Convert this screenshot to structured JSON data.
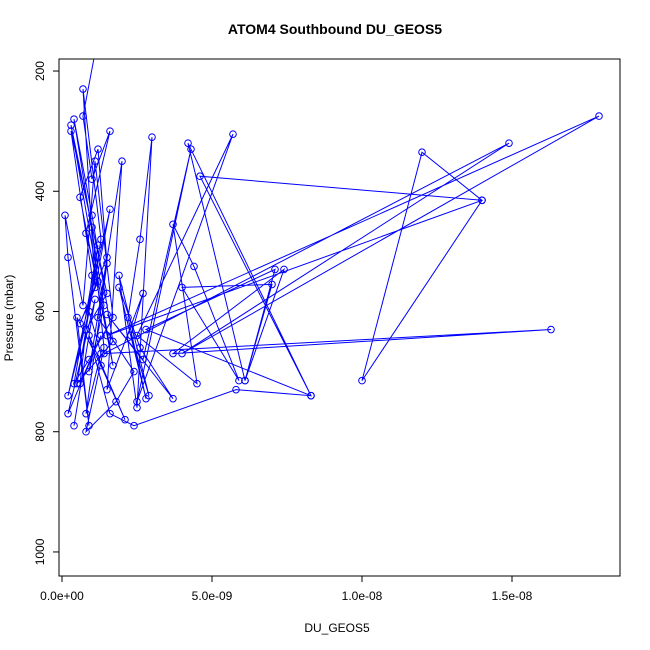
{
  "chart_data": {
    "type": "line",
    "title": "ATOM4 Southbound DU_GEOS5",
    "xlabel": "DU_GEOS5",
    "ylabel": "Pressure (mbar)",
    "xlim": [
      -1e-10,
      1.86e-08
    ],
    "ylim": [
      1040,
      180
    ],
    "y_reversed": true,
    "x_ticks": [
      {
        "value": 0,
        "label": "0.0e+00"
      },
      {
        "value": 5e-09,
        "label": "5.0e-09"
      },
      {
        "value": 1e-08,
        "label": "1.0e-08"
      },
      {
        "value": 1.5e-08,
        "label": "1.5e-08"
      }
    ],
    "y_ticks": [
      {
        "value": 200,
        "label": "200"
      },
      {
        "value": 400,
        "label": "400"
      },
      {
        "value": 600,
        "label": "600"
      },
      {
        "value": 800,
        "label": "800"
      },
      {
        "value": 1000,
        "label": "1000"
      }
    ],
    "grid": false,
    "legend": "none",
    "series": [
      {
        "color": "#0000ff",
        "marker": "open-circle",
        "x": [
          1.1e-09,
          7e-10,
          1e-09,
          1.6e-09,
          8e-10,
          1.2e-09,
          6e-10,
          1.5e-09,
          9e-10,
          1.4e-09,
          4e-10,
          1e-09,
          1.7e-09,
          5e-10,
          1.3e-09,
          7e-10,
          1.1e-09,
          1.6e-09,
          2e-10,
          9e-10,
          1.3e-09,
          8e-10,
          1.5e-09,
          1.2e-09,
          6e-10,
          1.7e-09,
          3e-10,
          1e-09,
          1.4e-09,
          8e-10,
          1.8e-09,
          2.4e-09,
          1.2e-09,
          2e-09,
          1.5e-09,
          2.7e-09,
          2.3e-09,
          2.9e-09,
          1.9e-09,
          2.5e-09,
          3e-09,
          2.6e-09,
          2.2e-09,
          2.8e-09,
          1.9e-09,
          2.6e-09,
          3.7e-09,
          1.5e-09,
          2.7e-09,
          4.3e-09,
          2.5e-09,
          5.7e-09,
          2.5e-09,
          4.5e-09,
          3.7e-09,
          4.4e-09,
          5.9e-09,
          4e-09,
          7e-09,
          6.1e-09,
          7.4e-09,
          3.7e-09,
          1.63e-08,
          1.4e-09,
          1.49e-08,
          4e-09,
          1.79e-08,
          1.5e-09,
          1.4e-08,
          1.2e-08,
          1e-08,
          1.4e-08,
          4.6e-09,
          8.3e-09,
          2.8e-09,
          7.1e-09,
          6.1e-09,
          4.2e-09,
          8.3e-09,
          5.8e-09,
          2.4e-09,
          1.6e-09,
          9e-10,
          2.1e-09,
          1.3e-09,
          5e-10,
          9e-10,
          2e-10,
          1e-10,
          7e-10,
          1.1e-09,
          1.7e-09,
          9e-10,
          4e-10,
          1.2e-09,
          8e-10,
          1.5e-09,
          3e-10,
          1e-09,
          6e-10,
          1.3e-09,
          2e-10,
          1.1e-09,
          4e-10
        ],
        "y": [
          170,
          275,
          380,
          300,
          470,
          550,
          620,
          510,
          700,
          590,
          280,
          440,
          650,
          720,
          480,
          230,
          560,
          430,
          740,
          600,
          670,
          770,
          520,
          330,
          410,
          690,
          290,
          460,
          660,
          800,
          750,
          700,
          610,
          350,
          730,
          570,
          640,
          740,
          540,
          760,
          310,
          480,
          610,
          745,
          560,
          660,
          745,
          605,
          680,
          330,
          750,
          305,
          640,
          720,
          455,
          525,
          715,
          560,
          555,
          715,
          530,
          670,
          630,
          670,
          320,
          670,
          275,
          640,
          415,
          335,
          715,
          415,
          375,
          740,
          630,
          530,
          715,
          320,
          740,
          730,
          790,
          770,
          640,
          780,
          690,
          610,
          790,
          510,
          440,
          590,
          350,
          610,
          680,
          720,
          490,
          630,
          570,
          300,
          540,
          720,
          640,
          770,
          580,
          790
        ]
      }
    ]
  }
}
